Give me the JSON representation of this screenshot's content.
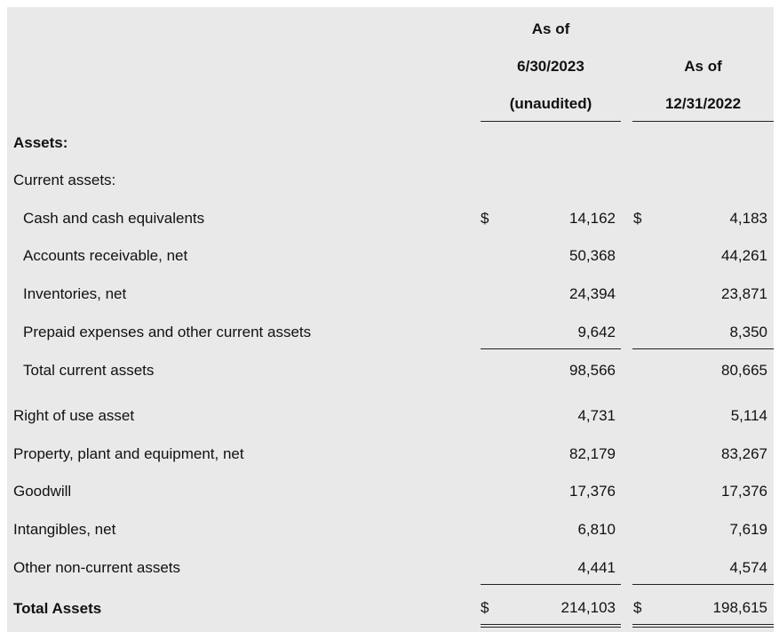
{
  "header": {
    "col1_line1": "As of",
    "col1_line2": "6/30/2023",
    "col1_line3": "(unaudited)",
    "col2_line1": "As of",
    "col2_line2": "12/31/2022"
  },
  "sections": {
    "assets_label": "Assets:",
    "current_assets_label": "Current assets:"
  },
  "currency_symbol": "$",
  "rows": [
    {
      "label": "Cash and cash equivalents",
      "v2023": "14,162",
      "v2022": "4,183"
    },
    {
      "label": "Accounts receivable, net",
      "v2023": "50,368",
      "v2022": "44,261"
    },
    {
      "label": "Inventories, net",
      "v2023": "24,394",
      "v2022": "23,871"
    },
    {
      "label": "Prepaid expenses and other current assets",
      "v2023": "9,642",
      "v2022": "8,350"
    },
    {
      "label": "Total current assets",
      "v2023": "98,566",
      "v2022": "80,665"
    },
    {
      "label": "Right of use asset",
      "v2023": "4,731",
      "v2022": "5,114"
    },
    {
      "label": "Property, plant and equipment, net",
      "v2023": "82,179",
      "v2022": "83,267"
    },
    {
      "label": "Goodwill",
      "v2023": "17,376",
      "v2022": "17,376"
    },
    {
      "label": "Intangibles, net",
      "v2023": "6,810",
      "v2022": "7,619"
    },
    {
      "label": "Other non-current assets",
      "v2023": "4,441",
      "v2022": "4,574"
    },
    {
      "label": "Total Assets",
      "v2023": "214,103",
      "v2022": "198,615"
    }
  ]
}
